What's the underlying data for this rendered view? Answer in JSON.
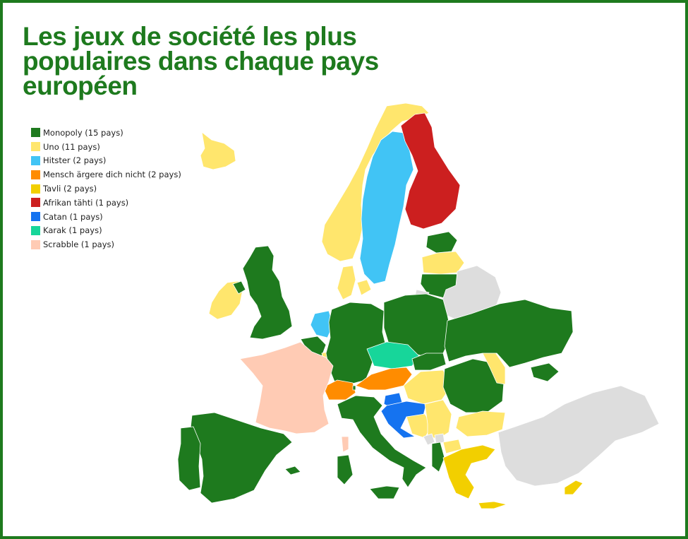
{
  "title_lines": [
    "Les jeux de société les plus",
    "populaires dans chaque pays",
    "européen"
  ],
  "colors": {
    "frame": "#1e7a1e",
    "title": "#1e7a1e",
    "no_data": "#dddddd"
  },
  "legend": [
    {
      "label": "Monopoly (15 pays)",
      "color": "#1e7a1e"
    },
    {
      "label": "Uno (11 pays)",
      "color": "#ffe66d"
    },
    {
      "label": "Hitster (2 pays)",
      "color": "#41c4f5"
    },
    {
      "label": "Mensch ärgere dich nicht (2 pays)",
      "color": "#ff8c00"
    },
    {
      "label": "Tavli (2 pays)",
      "color": "#f2cf00"
    },
    {
      "label": "Afrikan tähti (1 pays)",
      "color": "#cc1f1f"
    },
    {
      "label": "Catan (1 pays)",
      "color": "#1573f0"
    },
    {
      "label": "Karak (1 pays)",
      "color": "#17d69a"
    },
    {
      "label": "Scrabble (1 pays)",
      "color": "#ffcbb4"
    }
  ]
}
